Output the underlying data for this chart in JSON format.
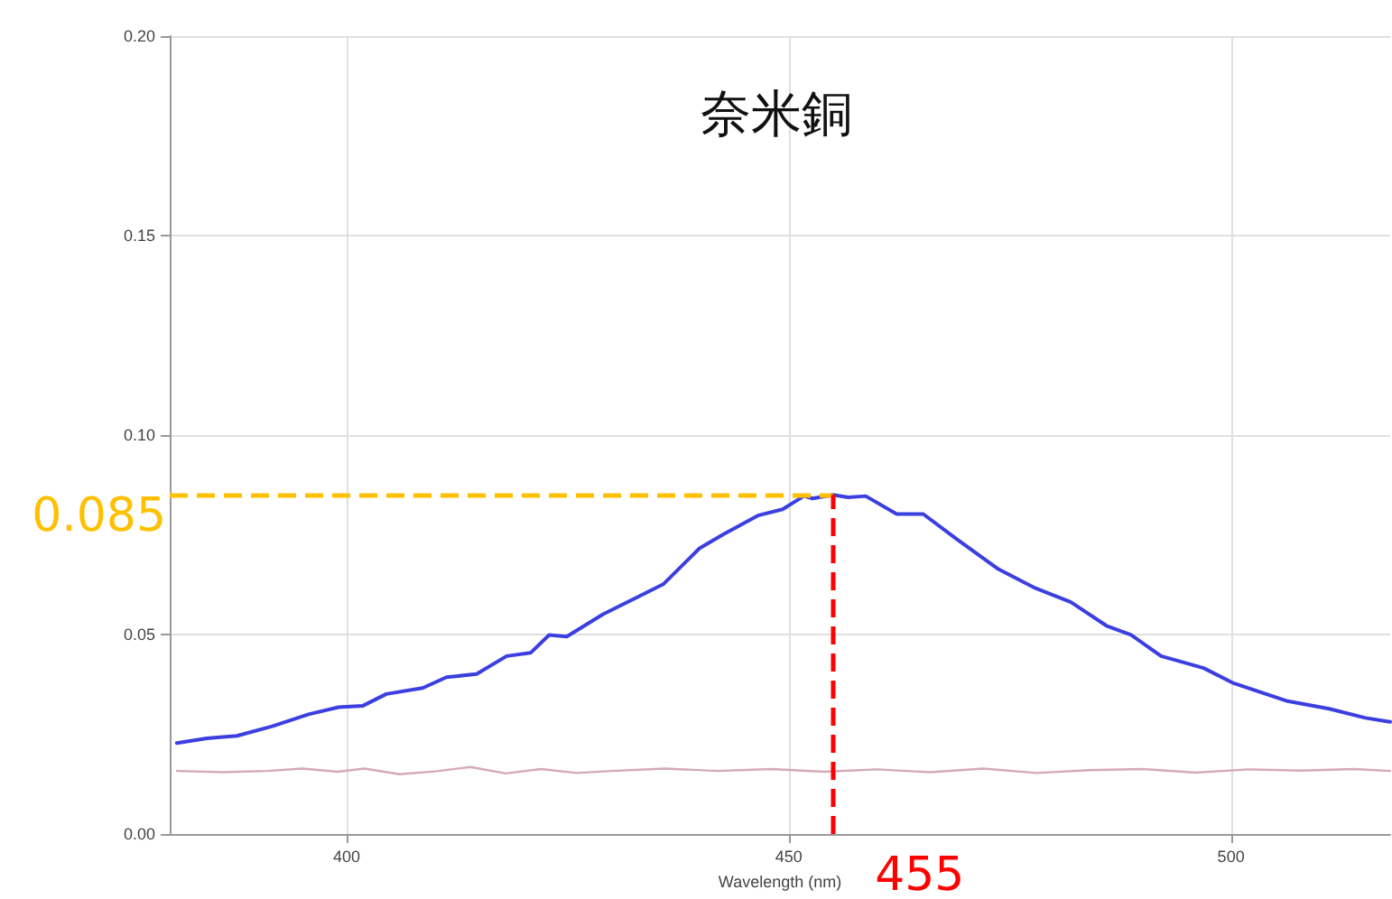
{
  "chart_data": {
    "type": "line",
    "title": "奈米銅",
    "xlabel": "Wavelength (nm)",
    "xlim": [
      380,
      518
    ],
    "xticks": [
      400,
      450,
      500
    ],
    "ylim": [
      0,
      0.2
    ],
    "yticks": [
      {
        "value": 0,
        "label": "0.00"
      },
      {
        "value": 0.05,
        "label": "0.05"
      },
      {
        "value": 0.1,
        "label": "0.10"
      },
      {
        "value": 0.15,
        "label": "0.15"
      },
      {
        "value": 0.2,
        "label": "0.20"
      }
    ],
    "grid": true,
    "marker": "none",
    "line_style": "solid",
    "series": [
      {
        "color": "#3b3fe0",
        "x": [
          380.8,
          384.2,
          387.6,
          391.6,
          395.7,
          399.1,
          401.8,
          404.5,
          408.6,
          411.3,
          414.7,
          418.1,
          420.8,
          422.9,
          424.9,
          429.0,
          433.1,
          435.8,
          439.9,
          442.6,
          446.6,
          449.3,
          451.7,
          452.7,
          455,
          456.7,
          458.7,
          462.2,
          465.2,
          469.0,
          473.7,
          477.9,
          481.9,
          486.0,
          488.7,
          492.1,
          496.9,
          500.3,
          506.4,
          511.1,
          515.2,
          518
        ],
        "values": [
          0.0228,
          0.024,
          0.0246,
          0.027,
          0.03,
          0.0318,
          0.0321,
          0.0351,
          0.0366,
          0.0393,
          0.0401,
          0.0446,
          0.0454,
          0.0499,
          0.0495,
          0.0551,
          0.0596,
          0.0626,
          0.0716,
          0.0751,
          0.0799,
          0.0814,
          0.0847,
          0.0841,
          0.085,
          0.0844,
          0.0847,
          0.0802,
          0.0802,
          0.0739,
          0.0664,
          0.0616,
          0.0581,
          0.0521,
          0.0499,
          0.0446,
          0.0416,
          0.0378,
          0.0333,
          0.0314,
          0.0291,
          0.0281
        ]
      },
      {
        "color": "#d4a9b8",
        "x": [
          380.8,
          386,
          391,
          395,
          399,
          402,
          406,
          410,
          414,
          418,
          422,
          426,
          430,
          436,
          442,
          448,
          454,
          460,
          466,
          472,
          478,
          484,
          490,
          496,
          502,
          508,
          514,
          518
        ],
        "values": [
          0.0158,
          0.0155,
          0.0158,
          0.0164,
          0.0156,
          0.0164,
          0.015,
          0.0157,
          0.0168,
          0.0152,
          0.0163,
          0.0153,
          0.0158,
          0.0164,
          0.0158,
          0.0163,
          0.0156,
          0.0162,
          0.0155,
          0.0164,
          0.0153,
          0.016,
          0.0163,
          0.0154,
          0.0162,
          0.0159,
          0.0163,
          0.0158
        ]
      }
    ],
    "ref_lines": [
      {
        "axis": "y",
        "value": 0.085,
        "label": "0.085",
        "color": "#ffc000",
        "line_style": "dashed"
      },
      {
        "axis": "x",
        "value": 455,
        "label": "455",
        "color": "#ff0000",
        "line_style": "dashed"
      }
    ]
  }
}
